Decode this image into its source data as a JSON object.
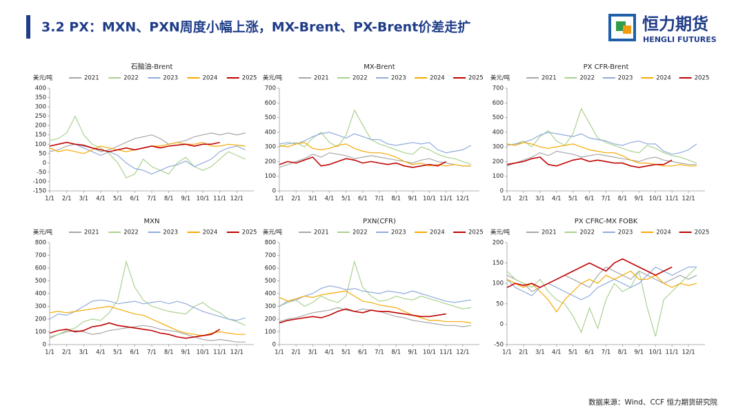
{
  "header": {
    "title": "3.2 PX：MXN、PXN周度小幅上涨，MX-Brent、PX-Brent价差走扩",
    "logo_cn": "恒力期货",
    "logo_en": "HENGLI FUTURES"
  },
  "source": "数据来源：Wind、CCF 恒力期货研究院",
  "chart_data": [
    {
      "type": "line",
      "title": "石脑油-Brent",
      "y_label": "美元/吨",
      "grid": false,
      "categories": [
        "1/1",
        null,
        "2/1",
        null,
        "3/1",
        null,
        "4/1",
        null,
        "5/1",
        null,
        "6/1",
        null,
        "7/1",
        null,
        "8/1",
        null,
        "9/1",
        null,
        "10/1",
        null,
        "11/1",
        null,
        "12/1",
        null
      ],
      "ylim": [
        -150,
        400
      ],
      "yticks": [
        -150,
        -100,
        -50,
        0,
        50,
        100,
        150,
        200,
        250,
        300,
        350,
        400
      ],
      "series": [
        {
          "name": "2021",
          "color": "#a6a6a6",
          "values": [
            60,
            70,
            90,
            100,
            90,
            80,
            60,
            70,
            90,
            110,
            130,
            140,
            150,
            130,
            100,
            110,
            120,
            140,
            150,
            160,
            150,
            160,
            150,
            160
          ]
        },
        {
          "name": "2022",
          "color": "#a9d18e",
          "values": [
            120,
            130,
            160,
            250,
            150,
            100,
            80,
            50,
            0,
            -80,
            -60,
            20,
            -20,
            -40,
            -60,
            0,
            30,
            -20,
            -40,
            -20,
            20,
            60,
            40,
            20
          ]
        },
        {
          "name": "2023",
          "color": "#8faadc",
          "values": [
            90,
            100,
            110,
            100,
            80,
            60,
            40,
            60,
            40,
            0,
            -30,
            -40,
            -60,
            -40,
            -20,
            -10,
            10,
            -20,
            0,
            20,
            60,
            80,
            90,
            70
          ]
        },
        {
          "name": "2024",
          "color": "#f5a800",
          "values": [
            80,
            60,
            70,
            60,
            50,
            70,
            90,
            80,
            70,
            60,
            70,
            80,
            90,
            90,
            100,
            110,
            100,
            100,
            110,
            90,
            90,
            100,
            95,
            90
          ]
        },
        {
          "name": "2025",
          "color": "#c00000",
          "values": [
            90,
            100,
            110,
            100,
            95,
            80,
            70,
            60,
            70,
            80,
            70,
            80,
            90,
            80,
            90,
            95,
            100,
            90,
            100,
            100,
            110,
            null,
            null,
            null
          ]
        }
      ]
    },
    {
      "type": "line",
      "title": "MX-Brent",
      "y_label": "美元/吨",
      "grid": false,
      "categories": [
        "1/1",
        null,
        "2/1",
        null,
        "3/1",
        null,
        "4/1",
        null,
        "5/1",
        null,
        "6/1",
        null,
        "7/1",
        null,
        "8/1",
        null,
        "9/1",
        null,
        "10/1",
        null,
        "11/1",
        null,
        "12/1",
        null
      ],
      "ylim": [
        0,
        700
      ],
      "yticks": [
        0,
        100,
        200,
        300,
        400,
        500,
        600,
        700
      ],
      "series": [
        {
          "name": "2021",
          "color": "#a6a6a6",
          "values": [
            160,
            180,
            200,
            220,
            250,
            230,
            260,
            250,
            240,
            220,
            230,
            240,
            230,
            220,
            210,
            200,
            190,
            210,
            220,
            200,
            190,
            180,
            170,
            170
          ]
        },
        {
          "name": "2022",
          "color": "#a9d18e",
          "values": [
            300,
            320,
            330,
            300,
            360,
            400,
            330,
            300,
            380,
            550,
            450,
            350,
            320,
            300,
            280,
            260,
            250,
            300,
            280,
            250,
            230,
            220,
            200,
            180
          ]
        },
        {
          "name": "2023",
          "color": "#8faadc",
          "values": [
            320,
            330,
            320,
            340,
            370,
            390,
            400,
            380,
            360,
            390,
            370,
            350,
            350,
            320,
            310,
            320,
            330,
            320,
            330,
            280,
            260,
            270,
            280,
            310
          ]
        },
        {
          "name": "2024",
          "color": "#f5a800",
          "values": [
            310,
            300,
            320,
            330,
            290,
            280,
            290,
            310,
            320,
            290,
            270,
            260,
            260,
            250,
            230,
            200,
            180,
            190,
            170,
            180,
            170,
            180,
            170,
            170
          ]
        },
        {
          "name": "2025",
          "color": "#c00000",
          "values": [
            180,
            200,
            190,
            210,
            230,
            170,
            180,
            200,
            220,
            210,
            190,
            200,
            190,
            180,
            190,
            170,
            160,
            170,
            180,
            170,
            200,
            null,
            null,
            null
          ]
        }
      ]
    },
    {
      "type": "line",
      "title": "PX CFR-Brent",
      "y_label": "美元/吨",
      "grid": false,
      "categories": [
        "1/1",
        null,
        "2/1",
        null,
        "3/1",
        null,
        "4/1",
        null,
        "5/1",
        null,
        "6/1",
        null,
        "7/1",
        null,
        "8/1",
        null,
        "9/1",
        null,
        "10/1",
        null,
        "11/1",
        null,
        "12/1",
        null
      ],
      "ylim": [
        0,
        700
      ],
      "yticks": [
        0,
        100,
        200,
        300,
        400,
        500,
        600,
        700
      ],
      "series": [
        {
          "name": "2021",
          "color": "#a6a6a6",
          "values": [
            170,
            190,
            210,
            230,
            260,
            240,
            270,
            260,
            250,
            230,
            240,
            250,
            240,
            230,
            220,
            210,
            200,
            220,
            230,
            210,
            200,
            190,
            180,
            180
          ]
        },
        {
          "name": "2022",
          "color": "#a9d18e",
          "values": [
            310,
            320,
            340,
            300,
            370,
            410,
            340,
            310,
            390,
            560,
            460,
            360,
            330,
            310,
            290,
            270,
            260,
            310,
            290,
            260,
            240,
            230,
            210,
            190
          ]
        },
        {
          "name": "2023",
          "color": "#8faadc",
          "values": [
            310,
            320,
            330,
            350,
            380,
            400,
            390,
            380,
            370,
            390,
            360,
            350,
            340,
            320,
            310,
            330,
            340,
            320,
            320,
            270,
            250,
            260,
            280,
            320
          ]
        },
        {
          "name": "2024",
          "color": "#f5a800",
          "values": [
            320,
            310,
            330,
            320,
            300,
            290,
            300,
            310,
            320,
            300,
            280,
            270,
            260,
            260,
            240,
            210,
            190,
            190,
            180,
            170,
            170,
            180,
            170,
            170
          ]
        },
        {
          "name": "2025",
          "color": "#c00000",
          "values": [
            180,
            190,
            200,
            220,
            230,
            180,
            170,
            190,
            210,
            220,
            200,
            210,
            200,
            190,
            190,
            170,
            160,
            170,
            180,
            180,
            210,
            null,
            null,
            null
          ]
        }
      ]
    },
    {
      "type": "line",
      "title": "MXN",
      "y_label": "美元/吨",
      "grid": false,
      "categories": [
        "1/1",
        null,
        "2/1",
        null,
        "3/1",
        null,
        "4/1",
        null,
        "5/1",
        null,
        "6/1",
        null,
        "7/1",
        null,
        "8/1",
        null,
        "9/1",
        null,
        "10/1",
        null,
        "11/1",
        null,
        "12/1",
        null
      ],
      "ylim": [
        0,
        800
      ],
      "yticks": [
        0,
        100,
        200,
        300,
        400,
        500,
        600,
        700,
        800
      ],
      "series": [
        {
          "name": "2021",
          "color": "#a6a6a6",
          "values": [
            50,
            80,
            100,
            110,
            100,
            80,
            90,
            110,
            120,
            130,
            140,
            150,
            140,
            120,
            110,
            100,
            80,
            60,
            40,
            30,
            40,
            30,
            20,
            20
          ]
        },
        {
          "name": "2022",
          "color": "#a9d18e",
          "values": [
            60,
            80,
            110,
            130,
            180,
            200,
            190,
            250,
            350,
            650,
            450,
            350,
            300,
            280,
            260,
            250,
            240,
            300,
            330,
            280,
            250,
            200,
            180,
            150
          ]
        },
        {
          "name": "2023",
          "color": "#8faadc",
          "values": [
            200,
            240,
            230,
            260,
            300,
            340,
            350,
            340,
            320,
            330,
            340,
            320,
            330,
            340,
            320,
            340,
            320,
            290,
            260,
            240,
            220,
            200,
            190,
            210
          ]
        },
        {
          "name": "2024",
          "color": "#f5a800",
          "values": [
            250,
            260,
            250,
            260,
            270,
            280,
            290,
            300,
            280,
            260,
            240,
            230,
            200,
            170,
            140,
            110,
            90,
            80,
            70,
            90,
            100,
            90,
            80,
            80
          ]
        },
        {
          "name": "2025",
          "color": "#c00000",
          "values": [
            90,
            110,
            120,
            100,
            110,
            140,
            150,
            170,
            150,
            140,
            130,
            120,
            110,
            90,
            80,
            60,
            50,
            60,
            70,
            80,
            120,
            null,
            null,
            null
          ]
        }
      ]
    },
    {
      "type": "line",
      "title": "PXN(CFR)",
      "y_label": "美元/吨",
      "grid": false,
      "categories": [
        "1/1",
        null,
        "2/1",
        null,
        "3/1",
        null,
        "4/1",
        null,
        "5/1",
        null,
        "6/1",
        null,
        "7/1",
        null,
        "8/1",
        null,
        "9/1",
        null,
        "10/1",
        null,
        "11/1",
        null,
        "12/1",
        null
      ],
      "ylim": [
        0,
        800
      ],
      "yticks": [
        0,
        100,
        200,
        300,
        400,
        500,
        600,
        700,
        800
      ],
      "series": [
        {
          "name": "2021",
          "color": "#a6a6a6",
          "values": [
            180,
            200,
            210,
            230,
            250,
            260,
            270,
            290,
            270,
            260,
            280,
            270,
            260,
            240,
            220,
            210,
            190,
            180,
            170,
            160,
            150,
            150,
            140,
            150
          ]
        },
        {
          "name": "2022",
          "color": "#a9d18e",
          "values": [
            300,
            330,
            350,
            300,
            330,
            380,
            350,
            330,
            380,
            650,
            450,
            380,
            340,
            350,
            380,
            360,
            350,
            380,
            360,
            340,
            320,
            300,
            280,
            290
          ]
        },
        {
          "name": "2023",
          "color": "#8faadc",
          "values": [
            300,
            340,
            350,
            380,
            400,
            440,
            460,
            450,
            430,
            440,
            420,
            410,
            400,
            420,
            410,
            400,
            420,
            400,
            380,
            360,
            340,
            330,
            340,
            350
          ]
        },
        {
          "name": "2024",
          "color": "#f5a800",
          "values": [
            370,
            340,
            360,
            380,
            370,
            390,
            400,
            410,
            420,
            380,
            340,
            330,
            310,
            300,
            290,
            260,
            230,
            210,
            190,
            190,
            180,
            180,
            180,
            170
          ]
        },
        {
          "name": "2025",
          "color": "#c00000",
          "values": [
            170,
            190,
            200,
            210,
            220,
            210,
            230,
            260,
            280,
            260,
            250,
            270,
            260,
            260,
            250,
            240,
            230,
            220,
            220,
            230,
            240,
            null,
            null,
            null
          ]
        }
      ]
    },
    {
      "type": "line",
      "title": "PX CFRC-MX FOBK",
      "y_label": "美元/吨",
      "grid": false,
      "categories": [
        "1/1",
        null,
        "2/1",
        null,
        "3/1",
        null,
        "4/1",
        null,
        "5/1",
        null,
        "6/1",
        null,
        "7/1",
        null,
        "8/1",
        null,
        "9/1",
        null,
        "10/1",
        null,
        "11/1",
        null,
        "12/1",
        null
      ],
      "ylim": [
        -50,
        200
      ],
      "yticks": [
        -50,
        0,
        50,
        100,
        150,
        200
      ],
      "series": [
        {
          "name": "2021",
          "color": "#a6a6a6",
          "values": [
            120,
            110,
            100,
            80,
            90,
            100,
            110,
            120,
            110,
            100,
            90,
            120,
            140,
            130,
            120,
            110,
            130,
            120,
            110,
            100,
            110,
            120,
            110,
            120
          ]
        },
        {
          "name": "2022",
          "color": "#a9d18e",
          "values": [
            130,
            110,
            100,
            90,
            110,
            80,
            60,
            50,
            20,
            -20,
            40,
            -10,
            60,
            100,
            80,
            90,
            130,
            40,
            -30,
            60,
            80,
            100,
            120,
            140
          ]
        },
        {
          "name": "2023",
          "color": "#8faadc",
          "values": [
            110,
            90,
            80,
            70,
            90,
            100,
            90,
            80,
            70,
            60,
            70,
            90,
            100,
            110,
            100,
            90,
            100,
            120,
            140,
            130,
            120,
            130,
            140,
            140
          ]
        },
        {
          "name": "2024",
          "color": "#f5a800",
          "values": [
            110,
            100,
            90,
            100,
            80,
            60,
            30,
            60,
            80,
            100,
            110,
            100,
            120,
            110,
            120,
            130,
            110,
            110,
            120,
            100,
            90,
            100,
            95,
            100
          ]
        },
        {
          "name": "2025",
          "color": "#c00000",
          "values": [
            90,
            100,
            95,
            100,
            90,
            100,
            110,
            120,
            130,
            140,
            150,
            140,
            130,
            150,
            160,
            150,
            140,
            130,
            120,
            130,
            140,
            null,
            null,
            null
          ]
        }
      ]
    }
  ]
}
